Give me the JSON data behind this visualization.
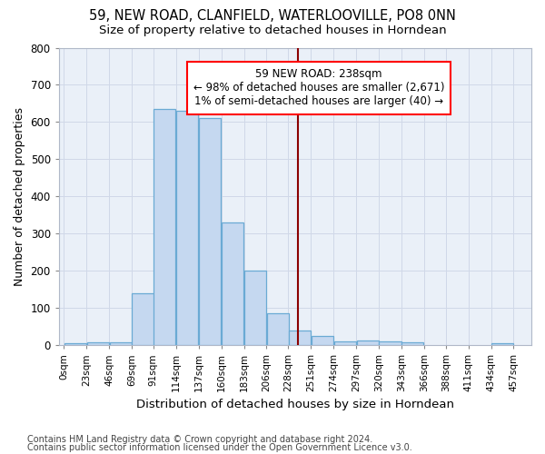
{
  "title1": "59, NEW ROAD, CLANFIELD, WATERLOOVILLE, PO8 0NN",
  "title2": "Size of property relative to detached houses in Horndean",
  "xlabel": "Distribution of detached houses by size in Horndean",
  "ylabel": "Number of detached properties",
  "footer1": "Contains HM Land Registry data © Crown copyright and database right 2024.",
  "footer2": "Contains public sector information licensed under the Open Government Licence v3.0.",
  "annotation_title": "59 NEW ROAD: 238sqm",
  "annotation_line1": "← 98% of detached houses are smaller (2,671)",
  "annotation_line2": "1% of semi-detached houses are larger (40) →",
  "bar_left_edges": [
    0,
    23,
    46,
    69,
    91,
    114,
    137,
    160,
    183,
    206,
    228,
    251,
    274,
    297,
    320,
    343,
    366,
    388,
    411,
    434
  ],
  "bar_heights": [
    5,
    8,
    8,
    140,
    635,
    630,
    610,
    330,
    200,
    85,
    40,
    25,
    10,
    12,
    10,
    8,
    0,
    0,
    0,
    5
  ],
  "bin_width": 23,
  "bar_color": "#c5d8f0",
  "bar_edge_color": "#6aaad4",
  "red_line_x": 238,
  "ylim_max": 800,
  "xlim_min": -5,
  "xlim_max": 475,
  "yticks": [
    0,
    100,
    200,
    300,
    400,
    500,
    600,
    700,
    800
  ],
  "tick_positions": [
    0,
    23,
    46,
    69,
    91,
    114,
    137,
    160,
    183,
    206,
    228,
    251,
    274,
    297,
    320,
    343,
    366,
    388,
    411,
    434,
    457
  ],
  "tick_labels": [
    "0sqm",
    "23sqm",
    "46sqm",
    "69sqm",
    "91sqm",
    "114sqm",
    "137sqm",
    "160sqm",
    "183sqm",
    "206sqm",
    "228sqm",
    "251sqm",
    "274sqm",
    "297sqm",
    "320sqm",
    "343sqm",
    "366sqm",
    "388sqm",
    "411sqm",
    "434sqm",
    "457sqm"
  ],
  "background_color": "#eaf0f8",
  "grid_color": "#d0d8e8",
  "title_fontsize": 10.5,
  "subtitle_fontsize": 9.5,
  "axis_label_fontsize": 9,
  "tick_fontsize": 7.5,
  "annotation_fontsize": 8.5,
  "footer_fontsize": 7
}
